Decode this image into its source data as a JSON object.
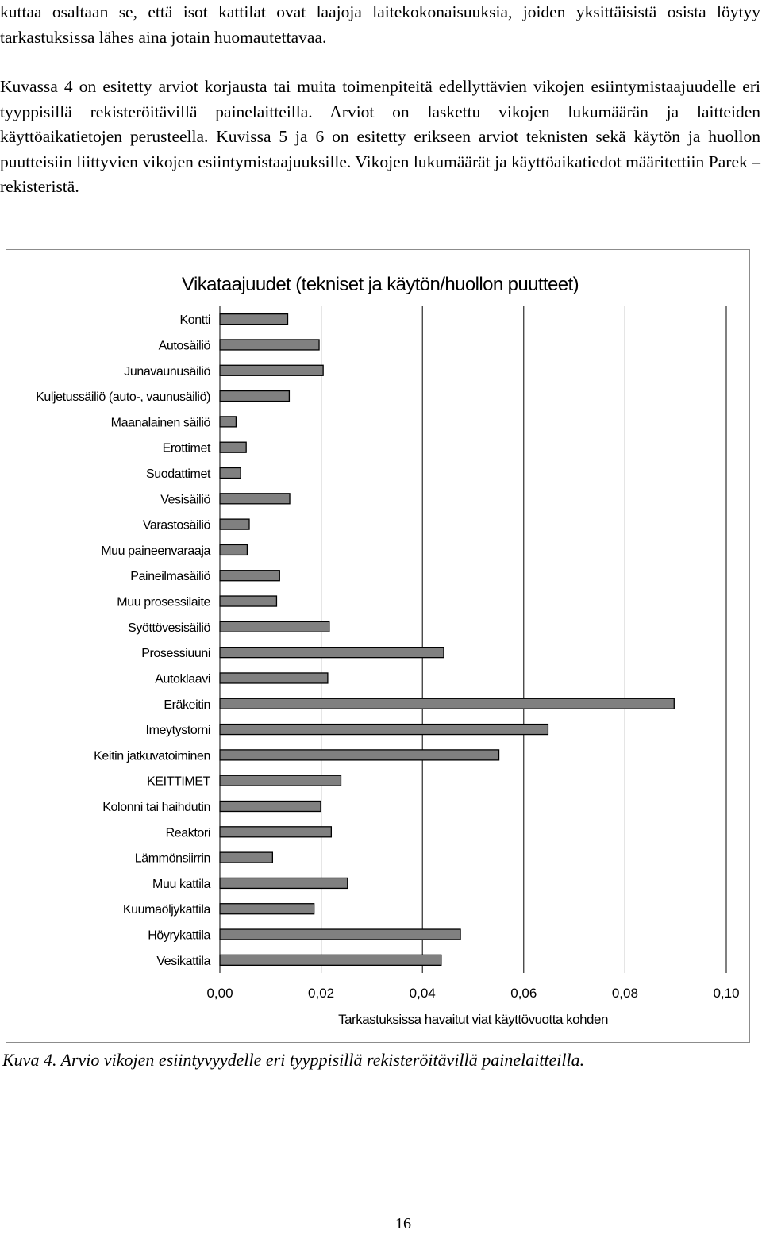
{
  "paragraphs": {
    "p1": "kuttaa osaltaan se, että isot kattilat ovat laajoja laitekokonaisuuksia, joiden yksittäisistä osista löytyy tarkastuksissa lähes aina jotain huomautettavaa.",
    "p2": "Kuvassa 4 on esitetty arviot korjausta tai muita toimenpiteitä edellyttävien vikojen esiintymistaajuudelle eri tyyppisillä rekisteröitävillä painelaitteilla. Arviot on laskettu vikojen lukumäärän ja laitteiden käyttöaikatietojen perusteella. Kuvissa 5 ja 6 on esitetty erikseen arviot teknisten sekä käytön ja huollon puutteisiin liittyvien vikojen esiintymistaajuuksille. Vikojen lukumäärät ja käyttöaikatiedot määritettiin Parek –rekisteristä."
  },
  "chart_data": {
    "type": "bar",
    "orientation": "horizontal",
    "title": "Vikataajuudet (tekniset ja käytön/huollon puutteet)",
    "xlabel": "Tarkastuksissa havaitut viat käyttövuotta kohden",
    "ylabel": "",
    "xlim": [
      0,
      0.1
    ],
    "xticks": [
      "0,00",
      "0,02",
      "0,04",
      "0,06",
      "0,08",
      "0,10"
    ],
    "grid": true,
    "categories": [
      "Kontti",
      "Autosäiliö",
      "Junavaunusäiliö",
      "Kuljetussäiliö (auto-, vaunusäiliö)",
      "Maanalainen säiliö",
      "Erottimet",
      "Suodattimet",
      "Vesisäiliö",
      "Varastosäiliö",
      "Muu paineenvaraaja",
      "Paineilmasäiliö",
      "Muu prosessilaite",
      "Syöttövesisäiliö",
      "Prosessiuuni",
      "Autoklaavi",
      "Eräkeitin",
      "Imeytystorni",
      "Keitin jatkuvatoiminen",
      "KEITTIMET",
      "Kolonni tai haihdutin",
      "Reaktori",
      "Lämmönsiirrin",
      "Muu kattila",
      "Kuumaöljykattila",
      "Höyrykattila",
      "Vesikattila"
    ],
    "values": [
      0.0134,
      0.0196,
      0.0204,
      0.0137,
      0.0032,
      0.0052,
      0.0041,
      0.0138,
      0.0058,
      0.0054,
      0.0118,
      0.0112,
      0.0216,
      0.0442,
      0.0213,
      0.0897,
      0.0648,
      0.0551,
      0.0239,
      0.0199,
      0.022,
      0.0104,
      0.0252,
      0.0186,
      0.0475,
      0.0437
    ],
    "bar_color": "#808080",
    "bar_outline": "#000000"
  },
  "caption": "Kuva 4. Arvio vikojen esiintyvyydelle eri tyyppisillä rekisteröitävillä painelaitteilla.",
  "page_number": "16"
}
